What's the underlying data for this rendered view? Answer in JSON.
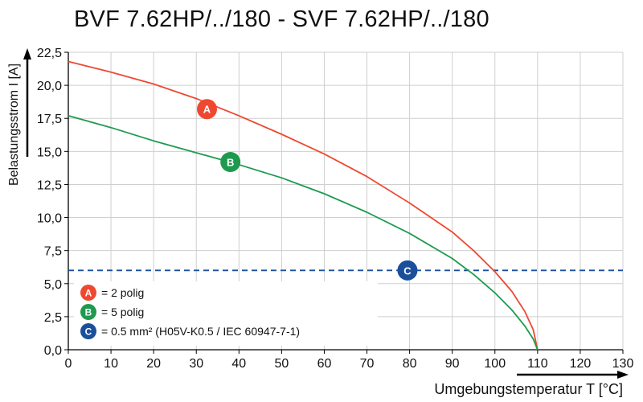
{
  "chart_data": {
    "type": "line",
    "title": "BVF 7.62HP/../180 - SVF 7.62HP/../180",
    "xlabel": "Umgebungstemperatur T [°C]",
    "ylabel": "Belastungsstrom I [A]",
    "xlim": [
      0,
      130
    ],
    "ylim": [
      0,
      22.5
    ],
    "x_ticks": [
      "0",
      "10",
      "20",
      "30",
      "40",
      "50",
      "60",
      "70",
      "80",
      "90",
      "100",
      "110",
      "120",
      "130"
    ],
    "y_ticks": [
      "0,0",
      "2,5",
      "5,0",
      "7,5",
      "10,0",
      "12,5",
      "15,0",
      "17,5",
      "20,0",
      "22,5"
    ],
    "grid": true,
    "series": [
      {
        "marker_label": "A",
        "color": "#ee4930",
        "x": [
          0,
          10,
          20,
          30,
          40,
          50,
          60,
          70,
          80,
          90,
          95,
          100,
          104,
          107,
          109,
          110
        ],
        "y": [
          21.8,
          21.0,
          20.1,
          19.0,
          17.7,
          16.3,
          14.8,
          13.1,
          11.1,
          8.9,
          7.5,
          5.9,
          4.4,
          2.9,
          1.5,
          0.0
        ]
      },
      {
        "marker_label": "B",
        "color": "#1e9a4f",
        "x": [
          0,
          10,
          20,
          30,
          40,
          50,
          60,
          70,
          80,
          90,
          95,
          100,
          104,
          107,
          109,
          110
        ],
        "y": [
          17.7,
          16.8,
          15.8,
          14.9,
          14.0,
          13.0,
          11.8,
          10.4,
          8.8,
          6.9,
          5.7,
          4.3,
          3.0,
          1.8,
          0.8,
          0.0
        ]
      }
    ],
    "reference_line": {
      "marker_label": "C",
      "y": 6.0,
      "color": "#1a4f9c",
      "style": "dashed"
    },
    "markers": [
      {
        "label": "A",
        "x": 32.5,
        "y": 18.2,
        "color": "#ee4930"
      },
      {
        "label": "B",
        "x": 38,
        "y": 14.2,
        "color": "#1e9a4f"
      },
      {
        "label": "C",
        "x": 79.5,
        "y": 6.0,
        "color": "#1a4f9c"
      }
    ],
    "legend": {
      "placement": "bottom-left",
      "entries": [
        {
          "label": "A",
          "text": "= 2 polig",
          "color": "#ee4930"
        },
        {
          "label": "B",
          "text": "= 5 polig",
          "color": "#1e9a4f"
        },
        {
          "label": "C",
          "text": "= 0.5 mm² (H05V-K0.5 / IEC 60947-7-1)",
          "color": "#1a4f9c"
        }
      ]
    }
  }
}
